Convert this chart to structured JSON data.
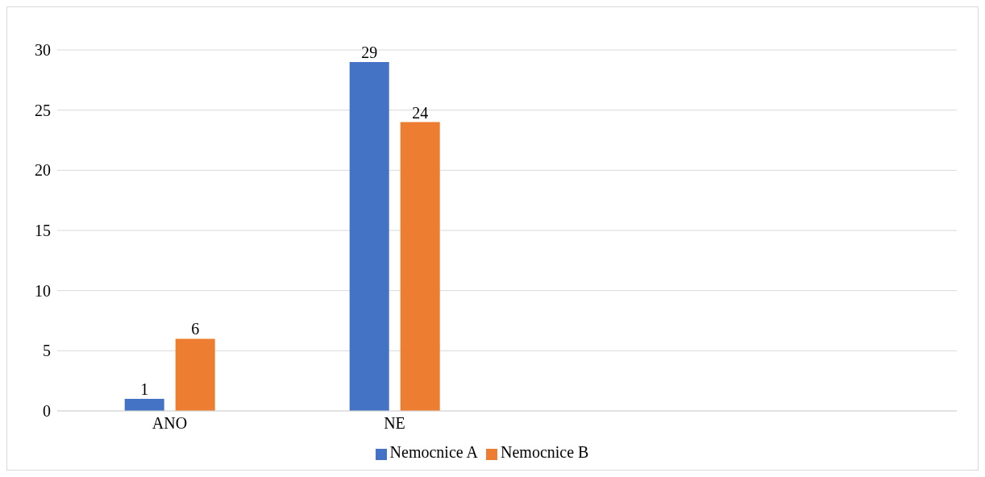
{
  "chart_data": {
    "type": "bar",
    "categories": [
      "ANO",
      "NE",
      null,
      null
    ],
    "series": [
      {
        "name": "Nemocnice A",
        "color": "#4472c4",
        "values": [
          1,
          29,
          null,
          null
        ]
      },
      {
        "name": "Nemocnice B",
        "color": "#ed7d31",
        "values": [
          6,
          24,
          null,
          null
        ]
      }
    ],
    "ylim": [
      0,
      30
    ],
    "yticks": [
      0,
      5,
      10,
      15,
      20,
      25,
      30
    ],
    "grid": "y",
    "legend": "bottom",
    "data_labels": true
  }
}
